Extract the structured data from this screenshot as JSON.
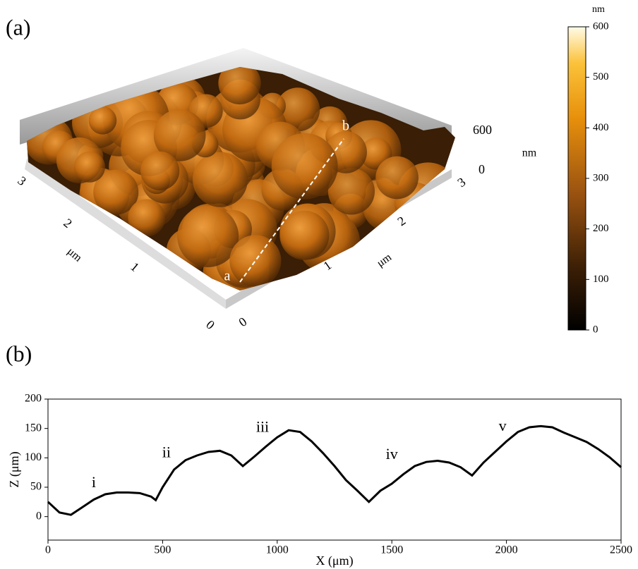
{
  "panel_a": {
    "label": "(a)",
    "point_a": "a",
    "point_b": "b",
    "x_axis": {
      "ticks": [
        "0",
        "1",
        "2",
        "3"
      ],
      "unit": "μm"
    },
    "y_axis": {
      "ticks": [
        "0",
        "1",
        "2",
        "3"
      ],
      "unit": "μm"
    },
    "z_axis": {
      "ticks": [
        "0",
        "600"
      ],
      "unit": "nm"
    },
    "colorbar": {
      "unit": "nm",
      "lim": [
        0,
        600
      ],
      "ticks": [
        0,
        100,
        200,
        300,
        400,
        500,
        600
      ]
    }
  },
  "panel_b": {
    "label": "(b)"
  },
  "chart_data": {
    "type": "line",
    "xlabel": "X (μm)",
    "ylabel": "Z (μm)",
    "color": "#000000",
    "x": [
      0,
      50,
      100,
      150,
      200,
      250,
      300,
      350,
      400,
      450,
      470,
      500,
      550,
      600,
      650,
      700,
      750,
      800,
      850,
      900,
      950,
      1000,
      1050,
      1100,
      1150,
      1200,
      1250,
      1300,
      1350,
      1400,
      1450,
      1500,
      1550,
      1600,
      1650,
      1700,
      1750,
      1800,
      1850,
      1900,
      1950,
      2000,
      2050,
      2100,
      2150,
      2200,
      2250,
      2300,
      2350,
      2400,
      2450,
      2500
    ],
    "values": [
      25,
      7,
      3,
      16,
      29,
      38,
      41,
      41,
      40,
      34,
      28,
      50,
      80,
      96,
      104,
      110,
      112,
      104,
      86,
      102,
      119,
      135,
      147,
      144,
      128,
      108,
      86,
      62,
      44,
      25,
      44,
      56,
      72,
      86,
      93,
      95,
      92,
      84,
      70,
      92,
      110,
      128,
      144,
      152,
      154,
      152,
      143,
      135,
      127,
      115,
      101,
      84
    ],
    "xlim": [
      0,
      2500
    ],
    "ylim": [
      -40,
      200
    ],
    "xticks": [
      0,
      500,
      1000,
      1500,
      2000,
      2500
    ],
    "yticks": [
      0,
      50,
      100,
      150,
      200
    ],
    "annotations": [
      {
        "text": "i",
        "x": 200,
        "y": 56
      },
      {
        "text": "ii",
        "x": 517,
        "y": 107
      },
      {
        "text": "iii",
        "x": 936,
        "y": 150
      },
      {
        "text": "iv",
        "x": 1500,
        "y": 104
      },
      {
        "text": "v",
        "x": 1983,
        "y": 152
      }
    ]
  }
}
